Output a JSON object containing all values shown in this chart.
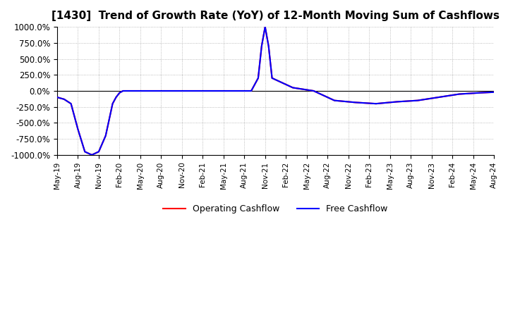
{
  "title": "[1430]  Trend of Growth Rate (YoY) of 12-Month Moving Sum of Cashflows",
  "title_fontsize": 11,
  "ylim": [
    -1000,
    1000
  ],
  "ytick_labels": [
    "1000.0%",
    "750.0%",
    "500.0%",
    "250.0%",
    "0.0%",
    "-250.0%",
    "-500.0%",
    "-750.0%",
    "-1000.0%"
  ],
  "ytick_values": [
    1000,
    750,
    500,
    250,
    0,
    -250,
    -500,
    -750,
    -1000
  ],
  "background_color": "#ffffff",
  "grid_color": "#aaaaaa",
  "legend_labels": [
    "Operating Cashflow",
    "Free Cashflow"
  ],
  "operating_color": "#ff0000",
  "free_color": "#0000ff",
  "x_tick_labels": [
    "May-19",
    "Aug-19",
    "Nov-19",
    "Feb-20",
    "May-20",
    "Aug-20",
    "Nov-20",
    "Feb-21",
    "May-21",
    "Aug-21",
    "Nov-21",
    "Feb-22",
    "May-22",
    "Aug-22",
    "Nov-22",
    "Feb-23",
    "May-23",
    "Aug-23",
    "Nov-23",
    "Feb-24",
    "May-24",
    "Aug-24"
  ],
  "x_tick_positions": [
    0,
    3,
    6,
    9,
    12,
    15,
    18,
    21,
    24,
    27,
    30,
    33,
    36,
    39,
    42,
    45,
    48,
    51,
    54,
    57,
    60,
    63
  ],
  "op_x": [
    0,
    1,
    2,
    3,
    4,
    5,
    6,
    7,
    8,
    8.5,
    9,
    9.5,
    10,
    13,
    16,
    19,
    22,
    25,
    28,
    29,
    29.5,
    30,
    30.5,
    31,
    34,
    37,
    40,
    43,
    46,
    49,
    52,
    55,
    58,
    61,
    63
  ],
  "op_y": [
    -100,
    -130,
    -200,
    -600,
    -950,
    -1000,
    -950,
    -700,
    -200,
    -100,
    -30,
    0,
    0,
    0,
    0,
    0,
    0,
    0,
    0,
    200,
    700,
    1000,
    700,
    200,
    50,
    0,
    -150,
    -180,
    -200,
    -170,
    -150,
    -100,
    -50,
    -30,
    -20
  ],
  "fc_x": [
    0,
    1,
    2,
    3,
    4,
    5,
    6,
    7,
    8,
    8.5,
    9,
    9.5,
    10,
    13,
    16,
    19,
    22,
    25,
    28,
    29,
    29.5,
    30,
    30.5,
    31,
    34,
    37,
    40,
    43,
    46,
    49,
    52,
    55,
    58,
    61,
    63
  ],
  "fc_y": [
    -100,
    -130,
    -200,
    -600,
    -950,
    -1000,
    -950,
    -700,
    -200,
    -100,
    -30,
    0,
    0,
    0,
    0,
    0,
    0,
    0,
    0,
    200,
    700,
    1000,
    700,
    200,
    50,
    0,
    -150,
    -180,
    -200,
    -170,
    -150,
    -100,
    -50,
    -30,
    -20
  ]
}
